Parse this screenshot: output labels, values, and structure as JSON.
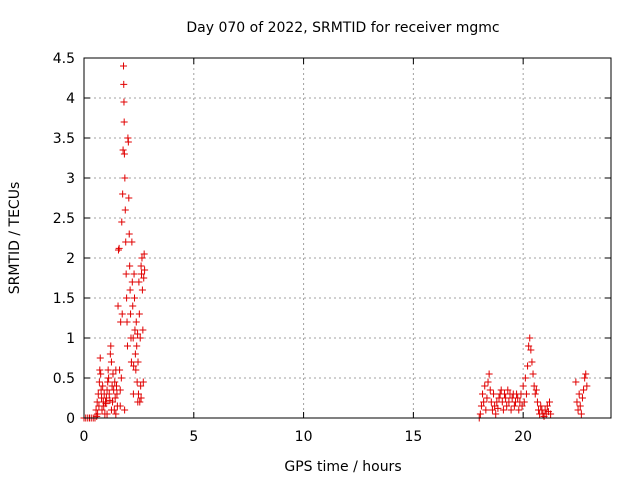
{
  "chart_data": {
    "type": "scatter",
    "title": "Day 070 of 2022, SRMTID for receiver mgmc",
    "xlabel": "GPS time / hours",
    "ylabel": "SRMTID / TECUs",
    "xlim": [
      0,
      24
    ],
    "ylim": [
      0,
      4.5
    ],
    "xticks": [
      "0",
      "5",
      "10",
      "15",
      "20"
    ],
    "xtick_values": [
      0,
      5,
      10,
      15,
      20
    ],
    "yticks": [
      "0",
      "0.5",
      "1",
      "1.5",
      "2",
      "2.5",
      "3",
      "3.5",
      "4",
      "4.5"
    ],
    "ytick_values": [
      0,
      0.5,
      1,
      1.5,
      2,
      2.5,
      3,
      3.5,
      4,
      4.5
    ],
    "grid": true,
    "marker": "+",
    "color": "#e00000",
    "series": [
      {
        "name": "SRMTID",
        "points": [
          [
            0.0,
            0.0
          ],
          [
            0.08,
            0.0
          ],
          [
            0.17,
            0.0
          ],
          [
            0.25,
            0.0
          ],
          [
            0.33,
            0.0
          ],
          [
            0.42,
            0.0
          ],
          [
            0.5,
            0.0
          ],
          [
            0.58,
            0.02
          ],
          [
            0.55,
            0.1
          ],
          [
            0.6,
            0.2
          ],
          [
            0.62,
            0.05
          ],
          [
            0.65,
            0.3
          ],
          [
            0.68,
            0.15
          ],
          [
            0.7,
            0.45
          ],
          [
            0.72,
            0.6
          ],
          [
            0.74,
            0.75
          ],
          [
            0.76,
            0.55
          ],
          [
            0.78,
            0.35
          ],
          [
            0.8,
            0.25
          ],
          [
            0.82,
            0.1
          ],
          [
            0.85,
            0.4
          ],
          [
            0.88,
            0.2
          ],
          [
            0.9,
            0.15
          ],
          [
            0.92,
            0.3
          ],
          [
            0.95,
            0.05
          ],
          [
            0.98,
            0.2
          ],
          [
            1.0,
            0.18
          ],
          [
            1.02,
            0.25
          ],
          [
            1.05,
            0.35
          ],
          [
            1.08,
            0.45
          ],
          [
            1.1,
            0.6
          ],
          [
            1.12,
            0.5
          ],
          [
            1.15,
            0.3
          ],
          [
            1.18,
            0.22
          ],
          [
            1.2,
            0.8
          ],
          [
            1.22,
            0.9
          ],
          [
            1.25,
            0.7
          ],
          [
            1.28,
            0.4
          ],
          [
            1.3,
            0.2
          ],
          [
            1.32,
            0.55
          ],
          [
            1.35,
            0.35
          ],
          [
            1.38,
            0.1
          ],
          [
            1.4,
            0.45
          ],
          [
            1.42,
            0.25
          ],
          [
            1.45,
            0.6
          ],
          [
            1.48,
            0.4
          ],
          [
            1.5,
            0.3
          ],
          [
            1.52,
            0.15
          ],
          [
            1.55,
            1.4
          ],
          [
            1.57,
            2.1
          ],
          [
            1.6,
            2.12
          ],
          [
            1.62,
            0.6
          ],
          [
            1.65,
            0.35
          ],
          [
            1.67,
            1.2
          ],
          [
            1.7,
            0.5
          ],
          [
            1.72,
            2.45
          ],
          [
            1.74,
            1.3
          ],
          [
            1.76,
            2.8
          ],
          [
            1.78,
            3.35
          ],
          [
            1.8,
            4.4
          ],
          [
            1.81,
            4.17
          ],
          [
            1.82,
            3.95
          ],
          [
            1.83,
            3.7
          ],
          [
            1.84,
            3.3
          ],
          [
            1.86,
            3.0
          ],
          [
            1.88,
            2.6
          ],
          [
            1.9,
            2.2
          ],
          [
            1.92,
            1.8
          ],
          [
            1.94,
            1.5
          ],
          [
            1.96,
            1.2
          ],
          [
            1.98,
            0.9
          ],
          [
            2.0,
            3.5
          ],
          [
            2.02,
            3.45
          ],
          [
            2.04,
            2.75
          ],
          [
            2.06,
            2.3
          ],
          [
            2.08,
            1.9
          ],
          [
            2.1,
            1.6
          ],
          [
            2.12,
            1.3
          ],
          [
            2.14,
            1.0
          ],
          [
            2.16,
            0.7
          ],
          [
            2.18,
            2.2
          ],
          [
            2.2,
            1.7
          ],
          [
            2.22,
            1.4
          ],
          [
            2.24,
            1.0
          ],
          [
            2.26,
            0.65
          ],
          [
            2.28,
            1.8
          ],
          [
            2.3,
            1.5
          ],
          [
            2.32,
            1.1
          ],
          [
            2.34,
            0.8
          ],
          [
            2.36,
            0.6
          ],
          [
            2.38,
            1.2
          ],
          [
            2.4,
            0.9
          ],
          [
            2.42,
            0.45
          ],
          [
            2.44,
            1.05
          ],
          [
            2.46,
            0.7
          ],
          [
            2.48,
            0.3
          ],
          [
            2.5,
            1.7
          ],
          [
            2.52,
            1.3
          ],
          [
            2.54,
            0.2
          ],
          [
            2.56,
            1.0
          ],
          [
            2.58,
            0.4
          ],
          [
            2.6,
            1.9
          ],
          [
            2.62,
            1.8
          ],
          [
            2.64,
            2.0
          ],
          [
            2.66,
            1.6
          ],
          [
            2.68,
            1.1
          ],
          [
            2.7,
            0.45
          ],
          [
            2.72,
            1.75
          ],
          [
            2.74,
            2.05
          ],
          [
            2.76,
            1.85
          ],
          [
            1.05,
            0.05
          ],
          [
            1.25,
            0.1
          ],
          [
            1.45,
            0.05
          ],
          [
            1.65,
            0.15
          ],
          [
            1.85,
            0.1
          ],
          [
            2.25,
            0.3
          ],
          [
            2.45,
            0.2
          ],
          [
            2.6,
            0.25
          ],
          [
            18.0,
            0.0
          ],
          [
            18.05,
            0.05
          ],
          [
            18.1,
            0.15
          ],
          [
            18.15,
            0.3
          ],
          [
            18.2,
            0.2
          ],
          [
            18.25,
            0.4
          ],
          [
            18.3,
            0.1
          ],
          [
            18.35,
            0.25
          ],
          [
            18.4,
            0.45
          ],
          [
            18.45,
            0.55
          ],
          [
            18.5,
            0.35
          ],
          [
            18.55,
            0.2
          ],
          [
            18.6,
            0.1
          ],
          [
            18.65,
            0.3
          ],
          [
            18.7,
            0.15
          ],
          [
            18.75,
            0.05
          ],
          [
            18.8,
            0.2
          ],
          [
            18.85,
            0.12
          ],
          [
            18.9,
            0.25
          ],
          [
            18.95,
            0.3
          ],
          [
            19.0,
            0.35
          ],
          [
            19.05,
            0.2
          ],
          [
            19.1,
            0.1
          ],
          [
            19.15,
            0.3
          ],
          [
            19.2,
            0.25
          ],
          [
            19.25,
            0.15
          ],
          [
            19.3,
            0.35
          ],
          [
            19.35,
            0.2
          ],
          [
            19.4,
            0.3
          ],
          [
            19.45,
            0.1
          ],
          [
            19.5,
            0.25
          ],
          [
            19.55,
            0.3
          ],
          [
            19.6,
            0.15
          ],
          [
            19.65,
            0.2
          ],
          [
            19.7,
            0.3
          ],
          [
            19.75,
            0.25
          ],
          [
            19.8,
            0.1
          ],
          [
            19.85,
            0.2
          ],
          [
            19.9,
            0.3
          ],
          [
            19.95,
            0.15
          ],
          [
            20.0,
            0.4
          ],
          [
            20.05,
            0.2
          ],
          [
            20.1,
            0.5
          ],
          [
            20.15,
            0.3
          ],
          [
            20.2,
            0.65
          ],
          [
            20.25,
            0.9
          ],
          [
            20.3,
            1.0
          ],
          [
            20.35,
            0.85
          ],
          [
            20.4,
            0.7
          ],
          [
            20.45,
            0.55
          ],
          [
            20.5,
            0.4
          ],
          [
            20.55,
            0.3
          ],
          [
            20.6,
            0.35
          ],
          [
            20.65,
            0.2
          ],
          [
            20.7,
            0.1
          ],
          [
            20.75,
            0.05
          ],
          [
            20.8,
            0.15
          ],
          [
            20.85,
            0.1
          ],
          [
            20.9,
            0.05
          ],
          [
            20.95,
            0.02
          ],
          [
            21.0,
            0.1
          ],
          [
            21.05,
            0.05
          ],
          [
            21.1,
            0.15
          ],
          [
            21.15,
            0.08
          ],
          [
            21.2,
            0.2
          ],
          [
            21.25,
            0.05
          ],
          [
            22.4,
            0.45
          ],
          [
            22.45,
            0.2
          ],
          [
            22.5,
            0.1
          ],
          [
            22.55,
            0.3
          ],
          [
            22.6,
            0.15
          ],
          [
            22.65,
            0.05
          ],
          [
            22.7,
            0.25
          ],
          [
            22.75,
            0.35
          ],
          [
            22.8,
            0.5
          ],
          [
            22.85,
            0.55
          ],
          [
            22.9,
            0.4
          ]
        ]
      }
    ]
  }
}
